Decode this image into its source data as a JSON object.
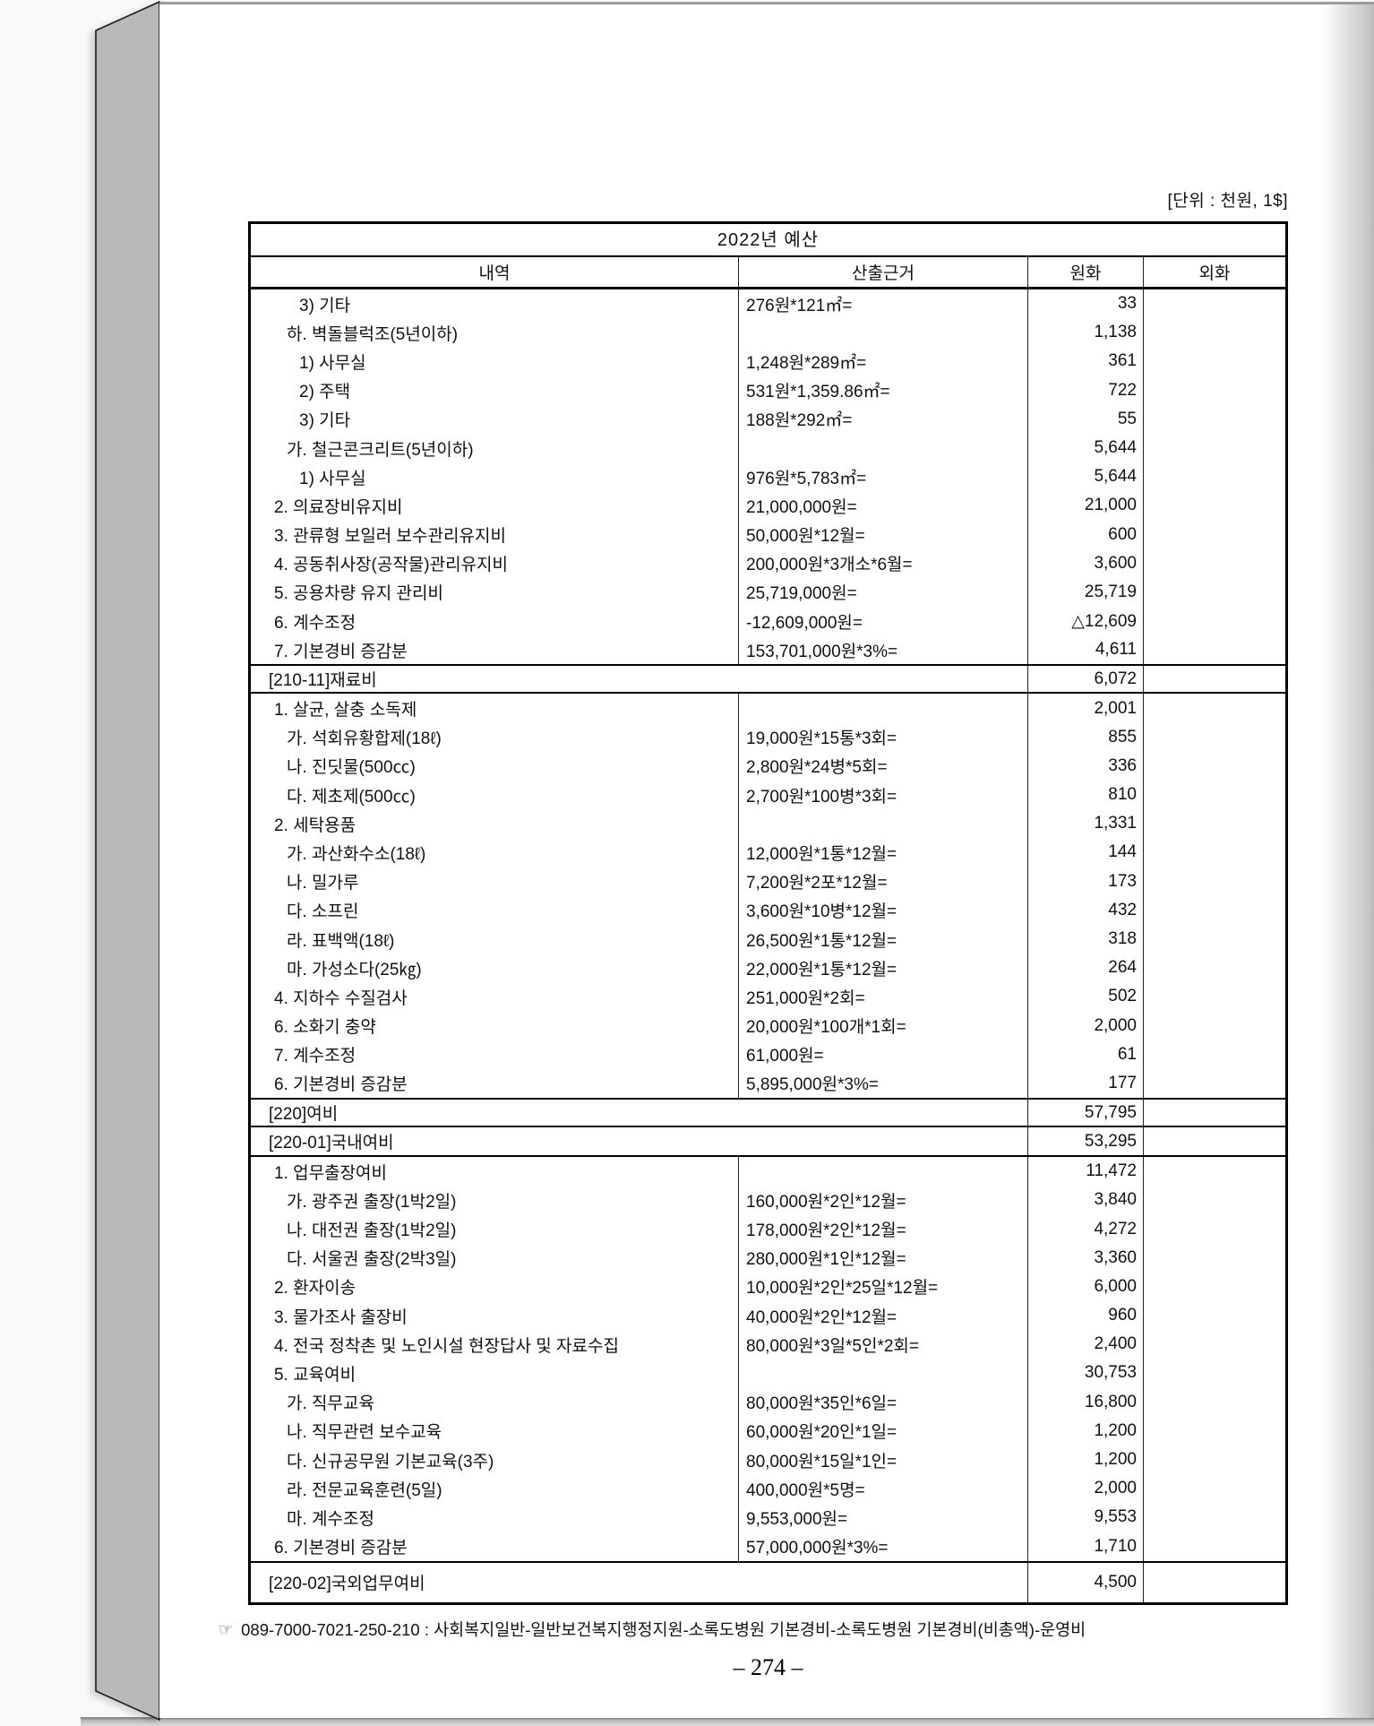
{
  "page": {
    "unit_label": "[단위 : 천원, 1$]",
    "footnote_icon": "☞",
    "footnote_text": "089-7000-7021-250-210 : 사회복지일반-일반보건복지행정지원-소록도병원 기본경비-소록도병원 기본경비(비총액)-운영비",
    "page_number": "– 274 –"
  },
  "colors": {
    "paper": "#ffffff",
    "background": "#f7f8f7",
    "page_stack_edge": "#b9b9b9",
    "table_border": "#000000"
  },
  "table": {
    "title": "2022년 예산",
    "headers": [
      "내역",
      "산출근거",
      "원화",
      "외화"
    ],
    "rows": [
      {
        "type": "item",
        "indent": 3,
        "label": "3) 기타",
        "basis": "276원*121㎡=",
        "krw": "33",
        "fx": ""
      },
      {
        "type": "item",
        "indent": 2,
        "label": "하. 벽돌블럭조(5년이하)",
        "basis": "",
        "krw": "1,138",
        "fx": ""
      },
      {
        "type": "item",
        "indent": 3,
        "label": "1) 사무실",
        "basis": "1,248원*289㎡=",
        "krw": "361",
        "fx": ""
      },
      {
        "type": "item",
        "indent": 3,
        "label": "2) 주택",
        "basis": "531원*1,359.86㎡=",
        "krw": "722",
        "fx": ""
      },
      {
        "type": "item",
        "indent": 3,
        "label": "3) 기타",
        "basis": "188원*292㎡=",
        "krw": "55",
        "fx": ""
      },
      {
        "type": "item",
        "indent": 2,
        "label": "가. 철근콘크리트(5년이하)",
        "basis": "",
        "krw": "5,644",
        "fx": ""
      },
      {
        "type": "item",
        "indent": 3,
        "label": "1) 사무실",
        "basis": "976원*5,783㎡=",
        "krw": "5,644",
        "fx": ""
      },
      {
        "type": "item",
        "indent": 1,
        "label": "2. 의료장비유지비",
        "basis": "21,000,000원=",
        "krw": "21,000",
        "fx": ""
      },
      {
        "type": "item",
        "indent": 1,
        "label": "3. 관류형 보일러 보수관리유지비",
        "basis": "50,000원*12월=",
        "krw": "600",
        "fx": ""
      },
      {
        "type": "item",
        "indent": 1,
        "label": "4. 공동취사장(공작물)관리유지비",
        "basis": "200,000원*3개소*6월=",
        "krw": "3,600",
        "fx": ""
      },
      {
        "type": "item",
        "indent": 1,
        "label": "5. 공용차량 유지 관리비",
        "basis": "25,719,000원=",
        "krw": "25,719",
        "fx": ""
      },
      {
        "type": "item",
        "indent": 1,
        "label": "6. 계수조정",
        "basis": "-12,609,000원=",
        "krw": "△12,609",
        "fx": ""
      },
      {
        "type": "item",
        "indent": 1,
        "label": "7. 기본경비 증감분",
        "basis": "153,701,000원*3%=",
        "krw": "4,611",
        "fx": ""
      },
      {
        "type": "section",
        "label": "[210-11]재료비",
        "krw": "6,072",
        "fx": ""
      },
      {
        "type": "item",
        "indent": 1,
        "label": "1. 살균, 살충 소독제",
        "basis": "",
        "krw": "2,001",
        "fx": ""
      },
      {
        "type": "item",
        "indent": 2,
        "label": "가. 석회유황합제(18ℓ)",
        "basis": "19,000원*15통*3회=",
        "krw": "855",
        "fx": ""
      },
      {
        "type": "item",
        "indent": 2,
        "label": "나. 진딧물(500㏄)",
        "basis": "2,800원*24병*5회=",
        "krw": "336",
        "fx": ""
      },
      {
        "type": "item",
        "indent": 2,
        "label": "다. 제초제(500㏄)",
        "basis": "2,700원*100병*3회=",
        "krw": "810",
        "fx": ""
      },
      {
        "type": "item",
        "indent": 1,
        "label": "2. 세탁용품",
        "basis": "",
        "krw": "1,331",
        "fx": ""
      },
      {
        "type": "item",
        "indent": 2,
        "label": "가. 과산화수소(18ℓ)",
        "basis": "12,000원*1통*12월=",
        "krw": "144",
        "fx": ""
      },
      {
        "type": "item",
        "indent": 2,
        "label": "나. 밀가루",
        "basis": "7,200원*2포*12월=",
        "krw": "173",
        "fx": ""
      },
      {
        "type": "item",
        "indent": 2,
        "label": "다. 소프린",
        "basis": "3,600원*10병*12월=",
        "krw": "432",
        "fx": ""
      },
      {
        "type": "item",
        "indent": 2,
        "label": "라. 표백액(18ℓ)",
        "basis": "26,500원*1통*12월=",
        "krw": "318",
        "fx": ""
      },
      {
        "type": "item",
        "indent": 2,
        "label": "마. 가성소다(25㎏)",
        "basis": "22,000원*1통*12월=",
        "krw": "264",
        "fx": ""
      },
      {
        "type": "item",
        "indent": 1,
        "label": "4. 지하수 수질검사",
        "basis": "251,000원*2회=",
        "krw": "502",
        "fx": ""
      },
      {
        "type": "item",
        "indent": 1,
        "label": "6. 소화기 충약",
        "basis": "20,000원*100개*1회=",
        "krw": "2,000",
        "fx": ""
      },
      {
        "type": "item",
        "indent": 1,
        "label": "7. 계수조정",
        "basis": "61,000원=",
        "krw": "61",
        "fx": ""
      },
      {
        "type": "item",
        "indent": 1,
        "label": "6. 기본경비 증감분",
        "basis": "5,895,000원*3%=",
        "krw": "177",
        "fx": ""
      },
      {
        "type": "section",
        "label": "[220]여비",
        "krw": "57,795",
        "fx": ""
      },
      {
        "type": "section",
        "label": "[220-01]국내여비",
        "krw": "53,295",
        "fx": ""
      },
      {
        "type": "item",
        "indent": 1,
        "label": "1. 업무출장여비",
        "basis": "",
        "krw": "11,472",
        "fx": ""
      },
      {
        "type": "item",
        "indent": 2,
        "label": "가. 광주권 출장(1박2일)",
        "basis": "160,000원*2인*12월=",
        "krw": "3,840",
        "fx": ""
      },
      {
        "type": "item",
        "indent": 2,
        "label": "나. 대전권 출장(1박2일)",
        "basis": "178,000원*2인*12월=",
        "krw": "4,272",
        "fx": ""
      },
      {
        "type": "item",
        "indent": 2,
        "label": "다. 서울권 출장(2박3일)",
        "basis": "280,000원*1인*12월=",
        "krw": "3,360",
        "fx": ""
      },
      {
        "type": "item",
        "indent": 1,
        "label": "2. 환자이송",
        "basis": "10,000원*2인*25일*12월=",
        "krw": "6,000",
        "fx": ""
      },
      {
        "type": "item",
        "indent": 1,
        "label": "3. 물가조사 출장비",
        "basis": "40,000원*2인*12월=",
        "krw": "960",
        "fx": ""
      },
      {
        "type": "item",
        "indent": 1,
        "label": "4. 전국 정착촌 및 노인시설 현장답사 및 자료수집",
        "basis": "80,000원*3일*5인*2회=",
        "krw": "2,400",
        "fx": ""
      },
      {
        "type": "item",
        "indent": 1,
        "label": "5. 교육여비",
        "basis": "",
        "krw": "30,753",
        "fx": ""
      },
      {
        "type": "item",
        "indent": 2,
        "label": "가. 직무교육",
        "basis": "80,000원*35인*6일=",
        "krw": "16,800",
        "fx": ""
      },
      {
        "type": "item",
        "indent": 2,
        "label": "나. 직무관련 보수교육",
        "basis": "60,000원*20인*1일=",
        "krw": "1,200",
        "fx": ""
      },
      {
        "type": "item",
        "indent": 2,
        "label": "다. 신규공무원 기본교육(3주)",
        "basis": "80,000원*15일*1인=",
        "krw": "1,200",
        "fx": ""
      },
      {
        "type": "item",
        "indent": 2,
        "label": "라. 전문교육훈련(5일)",
        "basis": "400,000원*5명=",
        "krw": "2,000",
        "fx": ""
      },
      {
        "type": "item",
        "indent": 2,
        "label": "마. 계수조정",
        "basis": "9,553,000원=",
        "krw": "9,553",
        "fx": ""
      },
      {
        "type": "item",
        "indent": 1,
        "label": "6. 기본경비 증감분",
        "basis": "57,000,000원*3%=",
        "krw": "1,710",
        "fx": ""
      },
      {
        "type": "section",
        "label": "[220-02]국외업무여비",
        "krw": "4,500",
        "fx": ""
      }
    ]
  }
}
